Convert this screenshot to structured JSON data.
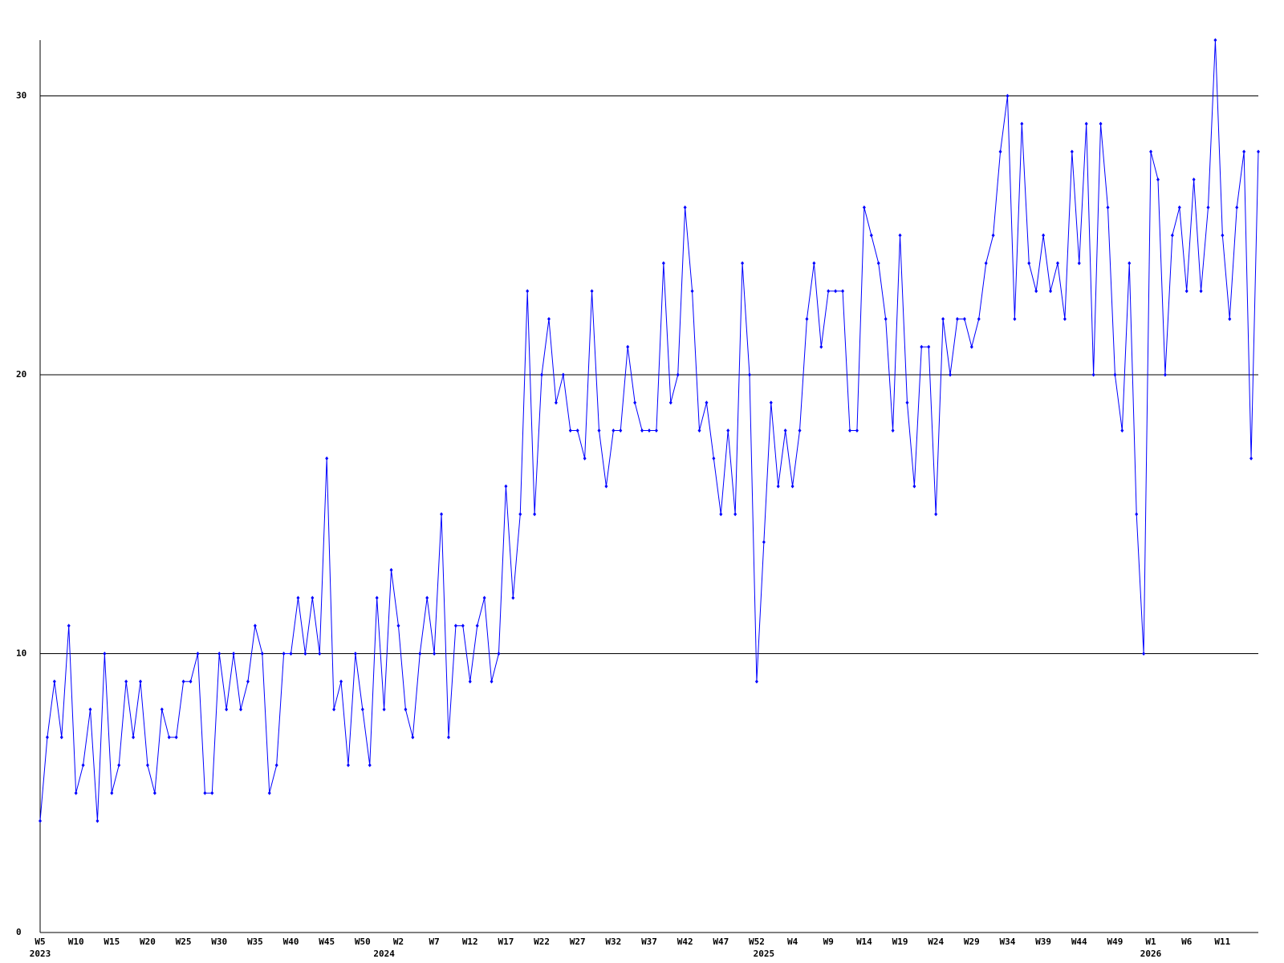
{
  "chart_data": {
    "type": "line",
    "categories": [
      "W5",
      null,
      null,
      null,
      null,
      "W10",
      null,
      null,
      null,
      null,
      "W15",
      null,
      null,
      null,
      null,
      "W20",
      null,
      null,
      null,
      null,
      "W25",
      null,
      null,
      null,
      null,
      "W30",
      null,
      null,
      null,
      null,
      "W35",
      null,
      null,
      null,
      null,
      "W40",
      null,
      null,
      null,
      null,
      "W45",
      null,
      null,
      null,
      null,
      "W50",
      null,
      null,
      null,
      null,
      "W2",
      null,
      null,
      null,
      null,
      "W7",
      null,
      null,
      null,
      null,
      "W12",
      null,
      null,
      null,
      null,
      "W17",
      null,
      null,
      null,
      null,
      "W22",
      null,
      null,
      null,
      null,
      "W27",
      null,
      null,
      null,
      null,
      "W32",
      null,
      null,
      null,
      null,
      "W37",
      null,
      null,
      null,
      null,
      "W42",
      null,
      null,
      null,
      null,
      "W47",
      null,
      null,
      null,
      null,
      "W52",
      null,
      null,
      null,
      null,
      "W4",
      null,
      null,
      null,
      null,
      "W9",
      null,
      null,
      null,
      null,
      "W14",
      null,
      null,
      null,
      null,
      "W19",
      null,
      null,
      null,
      null,
      "W24",
      null,
      null,
      null,
      null,
      "W29",
      null,
      null,
      null,
      null,
      "W34",
      null,
      null,
      null,
      null,
      "W39",
      null,
      null,
      null,
      null,
      "W44",
      null,
      null,
      null,
      null,
      "W49",
      null,
      null,
      null,
      null,
      "W1",
      null,
      null,
      null,
      null,
      "W6",
      null,
      null,
      null,
      null,
      "W11",
      null,
      null,
      null,
      null,
      null
    ],
    "year_labels": [
      "2023",
      null,
      null,
      null,
      null,
      null,
      null,
      null,
      null,
      null,
      null,
      null,
      null,
      null,
      null,
      null,
      null,
      null,
      null,
      null,
      null,
      null,
      null,
      null,
      null,
      null,
      null,
      null,
      null,
      null,
      null,
      null,
      null,
      null,
      null,
      null,
      null,
      null,
      null,
      null,
      null,
      null,
      null,
      null,
      null,
      null,
      null,
      null,
      "2024",
      null,
      null,
      null,
      null,
      null,
      null,
      null,
      null,
      null,
      null,
      null,
      null,
      null,
      null,
      null,
      null,
      null,
      null,
      null,
      null,
      null,
      null,
      null,
      null,
      null,
      null,
      null,
      null,
      null,
      null,
      null,
      null,
      null,
      null,
      null,
      null,
      null,
      null,
      null,
      null,
      null,
      null,
      null,
      null,
      null,
      null,
      null,
      null,
      null,
      null,
      null,
      null,
      "2025",
      null,
      null,
      null,
      null,
      null,
      null,
      null,
      null,
      null,
      null,
      null,
      null,
      null,
      null,
      null,
      null,
      null,
      null,
      null,
      null,
      null,
      null,
      null,
      null,
      null,
      null,
      null,
      null,
      null,
      null,
      null,
      null,
      null,
      null,
      null,
      null,
      null,
      null,
      null,
      null,
      null,
      null,
      null,
      null,
      null,
      null,
      null,
      null,
      null,
      null,
      null,
      null,
      null,
      "2026",
      null,
      null,
      null,
      null,
      null,
      null,
      null,
      null,
      null,
      null,
      null,
      null,
      null,
      null,
      null
    ],
    "series": [
      {
        "color": "#0000ff",
        "values": [
          4,
          7,
          9,
          7,
          11,
          5,
          6,
          8,
          4,
          10,
          5,
          6,
          9,
          7,
          9,
          6,
          5,
          8,
          7,
          7,
          9,
          9,
          10,
          5,
          5,
          10,
          8,
          10,
          8,
          9,
          11,
          10,
          5,
          6,
          10,
          10,
          12,
          10,
          12,
          10,
          17,
          8,
          9,
          6,
          10,
          8,
          6,
          12,
          8,
          13,
          11,
          8,
          7,
          10,
          12,
          10,
          15,
          7,
          11,
          11,
          9,
          11,
          12,
          9,
          10,
          16,
          12,
          15,
          23,
          15,
          20,
          22,
          19,
          20,
          18,
          18,
          17,
          23,
          18,
          16,
          18,
          18,
          21,
          19,
          18,
          18,
          18,
          24,
          19,
          20,
          26,
          23,
          18,
          19,
          17,
          15,
          18,
          15,
          24,
          20,
          9,
          14,
          19,
          16,
          18,
          16,
          18,
          22,
          24,
          21,
          23,
          23,
          23,
          18,
          18,
          26,
          25,
          24,
          22,
          18,
          25,
          19,
          16,
          21,
          21,
          15,
          22,
          20,
          22,
          22,
          21,
          22,
          24,
          25,
          28,
          30,
          22,
          29,
          24,
          23,
          25,
          23,
          24,
          22,
          28,
          24,
          29,
          20,
          29,
          26,
          20,
          18,
          24,
          15,
          10,
          28,
          27,
          20,
          25,
          26,
          23,
          27,
          23,
          26,
          32,
          25,
          22,
          26,
          28,
          17,
          28
        ]
      }
    ],
    "ylim": [
      0,
      32
    ],
    "yticks": [
      0,
      10,
      20,
      30
    ],
    "grid": true
  }
}
